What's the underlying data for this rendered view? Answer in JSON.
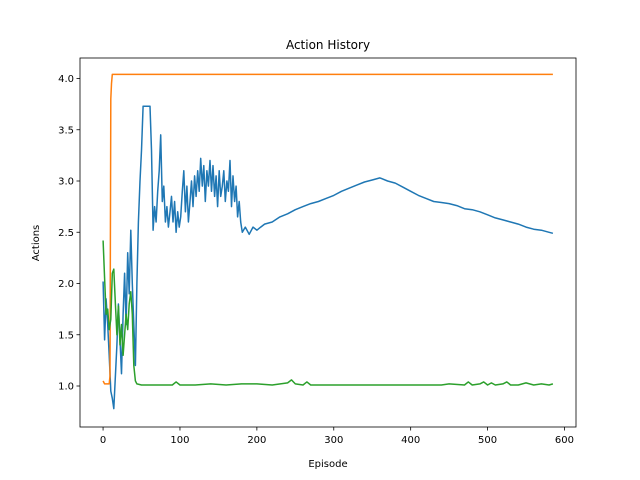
{
  "chart_data": {
    "type": "line",
    "title": "Action History",
    "xlabel": "Episode",
    "ylabel": "Actions",
    "xlim": [
      -30,
      615
    ],
    "ylim": [
      0.6,
      4.2
    ],
    "xticks": [
      0,
      100,
      200,
      300,
      400,
      500,
      600
    ],
    "yticks": [
      1.0,
      1.5,
      2.0,
      2.5,
      3.0,
      3.5,
      4.0
    ],
    "grid": false,
    "legend": "none",
    "series": [
      {
        "color": "#1f77b4",
        "points": [
          [
            0,
            2.02
          ],
          [
            2,
            1.45
          ],
          [
            4,
            1.85
          ],
          [
            6,
            1.6
          ],
          [
            8,
            1.3
          ],
          [
            10,
            0.95
          ],
          [
            12,
            0.88
          ],
          [
            14,
            0.78
          ],
          [
            16,
            1.1
          ],
          [
            18,
            1.4
          ],
          [
            20,
            1.8
          ],
          [
            22,
            1.45
          ],
          [
            24,
            1.12
          ],
          [
            26,
            1.7
          ],
          [
            28,
            2.1
          ],
          [
            30,
            1.6
          ],
          [
            32,
            2.3
          ],
          [
            34,
            1.9
          ],
          [
            36,
            2.52
          ],
          [
            38,
            2.0
          ],
          [
            40,
            1.6
          ],
          [
            42,
            1.2
          ],
          [
            44,
            2.0
          ],
          [
            46,
            2.6
          ],
          [
            48,
            3.0
          ],
          [
            50,
            3.3
          ],
          [
            52,
            3.73
          ],
          [
            55,
            3.73
          ],
          [
            58,
            3.73
          ],
          [
            61,
            3.73
          ],
          [
            63,
            3.3
          ],
          [
            65,
            2.52
          ],
          [
            67,
            2.75
          ],
          [
            69,
            2.6
          ],
          [
            71,
            2.9
          ],
          [
            73,
            3.1
          ],
          [
            75,
            3.45
          ],
          [
            77,
            2.8
          ],
          [
            79,
            2.95
          ],
          [
            81,
            2.6
          ],
          [
            83,
            2.75
          ],
          [
            85,
            2.55
          ],
          [
            87,
            2.7
          ],
          [
            89,
            2.85
          ],
          [
            91,
            2.6
          ],
          [
            93,
            2.8
          ],
          [
            95,
            2.5
          ],
          [
            97,
            2.7
          ],
          [
            99,
            2.55
          ],
          [
            101,
            2.65
          ],
          [
            103,
            2.9
          ],
          [
            105,
            3.1
          ],
          [
            107,
            2.7
          ],
          [
            109,
            2.95
          ],
          [
            111,
            2.6
          ],
          [
            113,
            2.8
          ],
          [
            115,
            3.0
          ],
          [
            117,
            2.75
          ],
          [
            119,
            3.05
          ],
          [
            121,
            2.85
          ],
          [
            123,
            3.1
          ],
          [
            125,
            2.9
          ],
          [
            127,
            3.22
          ],
          [
            129,
            2.95
          ],
          [
            131,
            3.15
          ],
          [
            133,
            2.8
          ],
          [
            135,
            3.1
          ],
          [
            137,
            2.95
          ],
          [
            139,
            3.2
          ],
          [
            141,
            2.9
          ],
          [
            143,
            3.15
          ],
          [
            145,
            2.85
          ],
          [
            147,
            3.05
          ],
          [
            149,
            2.75
          ],
          [
            151,
            3.1
          ],
          [
            153,
            2.85
          ],
          [
            155,
            2.95
          ],
          [
            157,
            3.1
          ],
          [
            159,
            2.8
          ],
          [
            161,
            3.0
          ],
          [
            163,
            2.9
          ],
          [
            165,
            3.2
          ],
          [
            167,
            2.75
          ],
          [
            169,
            3.05
          ],
          [
            171,
            2.8
          ],
          [
            173,
            2.95
          ],
          [
            175,
            2.65
          ],
          [
            177,
            2.8
          ],
          [
            179,
            2.6
          ],
          [
            181,
            2.5
          ],
          [
            185,
            2.55
          ],
          [
            190,
            2.48
          ],
          [
            195,
            2.55
          ],
          [
            200,
            2.52
          ],
          [
            205,
            2.55
          ],
          [
            210,
            2.58
          ],
          [
            220,
            2.6
          ],
          [
            230,
            2.65
          ],
          [
            240,
            2.68
          ],
          [
            250,
            2.72
          ],
          [
            260,
            2.75
          ],
          [
            270,
            2.78
          ],
          [
            280,
            2.8
          ],
          [
            290,
            2.83
          ],
          [
            300,
            2.86
          ],
          [
            310,
            2.9
          ],
          [
            320,
            2.93
          ],
          [
            330,
            2.96
          ],
          [
            340,
            2.99
          ],
          [
            350,
            3.01
          ],
          [
            360,
            3.03
          ],
          [
            370,
            3.0
          ],
          [
            380,
            2.98
          ],
          [
            390,
            2.94
          ],
          [
            400,
            2.9
          ],
          [
            410,
            2.86
          ],
          [
            420,
            2.83
          ],
          [
            430,
            2.8
          ],
          [
            440,
            2.79
          ],
          [
            450,
            2.78
          ],
          [
            460,
            2.76
          ],
          [
            470,
            2.73
          ],
          [
            480,
            2.72
          ],
          [
            490,
            2.7
          ],
          [
            500,
            2.67
          ],
          [
            510,
            2.64
          ],
          [
            520,
            2.62
          ],
          [
            530,
            2.6
          ],
          [
            540,
            2.58
          ],
          [
            550,
            2.55
          ],
          [
            560,
            2.53
          ],
          [
            570,
            2.52
          ],
          [
            580,
            2.5
          ],
          [
            585,
            2.49
          ]
        ]
      },
      {
        "color": "#ff7f0e",
        "points": [
          [
            0,
            1.05
          ],
          [
            2,
            1.02
          ],
          [
            4,
            1.02
          ],
          [
            6,
            1.02
          ],
          [
            8,
            1.02
          ],
          [
            9,
            1.1
          ],
          [
            10,
            3.8
          ],
          [
            11,
            3.95
          ],
          [
            12,
            4.04
          ],
          [
            20,
            4.04
          ],
          [
            100,
            4.04
          ],
          [
            200,
            4.04
          ],
          [
            300,
            4.04
          ],
          [
            400,
            4.04
          ],
          [
            500,
            4.04
          ],
          [
            585,
            4.04
          ]
        ]
      },
      {
        "color": "#2ca02c",
        "points": [
          [
            0,
            2.42
          ],
          [
            2,
            2.05
          ],
          [
            4,
            1.7
          ],
          [
            6,
            1.75
          ],
          [
            8,
            1.55
          ],
          [
            10,
            1.65
          ],
          [
            12,
            2.1
          ],
          [
            14,
            2.14
          ],
          [
            16,
            1.8
          ],
          [
            18,
            1.5
          ],
          [
            20,
            1.78
          ],
          [
            22,
            1.4
          ],
          [
            24,
            1.6
          ],
          [
            26,
            1.3
          ],
          [
            28,
            1.5
          ],
          [
            30,
            1.7
          ],
          [
            32,
            1.55
          ],
          [
            34,
            1.8
          ],
          [
            36,
            1.92
          ],
          [
            38,
            1.7
          ],
          [
            40,
            1.2
          ],
          [
            42,
            1.05
          ],
          [
            44,
            1.02
          ],
          [
            50,
            1.01
          ],
          [
            60,
            1.01
          ],
          [
            70,
            1.01
          ],
          [
            80,
            1.01
          ],
          [
            90,
            1.01
          ],
          [
            95,
            1.04
          ],
          [
            100,
            1.01
          ],
          [
            120,
            1.01
          ],
          [
            140,
            1.02
          ],
          [
            160,
            1.01
          ],
          [
            180,
            1.02
          ],
          [
            200,
            1.02
          ],
          [
            220,
            1.01
          ],
          [
            240,
            1.03
          ],
          [
            245,
            1.06
          ],
          [
            250,
            1.02
          ],
          [
            260,
            1.01
          ],
          [
            265,
            1.04
          ],
          [
            270,
            1.01
          ],
          [
            300,
            1.01
          ],
          [
            350,
            1.01
          ],
          [
            400,
            1.01
          ],
          [
            440,
            1.01
          ],
          [
            450,
            1.02
          ],
          [
            470,
            1.01
          ],
          [
            475,
            1.04
          ],
          [
            480,
            1.01
          ],
          [
            490,
            1.02
          ],
          [
            495,
            1.04
          ],
          [
            500,
            1.01
          ],
          [
            505,
            1.03
          ],
          [
            510,
            1.01
          ],
          [
            520,
            1.02
          ],
          [
            525,
            1.04
          ],
          [
            530,
            1.01
          ],
          [
            540,
            1.01
          ],
          [
            550,
            1.03
          ],
          [
            560,
            1.01
          ],
          [
            570,
            1.02
          ],
          [
            580,
            1.01
          ],
          [
            585,
            1.02
          ]
        ]
      }
    ]
  }
}
